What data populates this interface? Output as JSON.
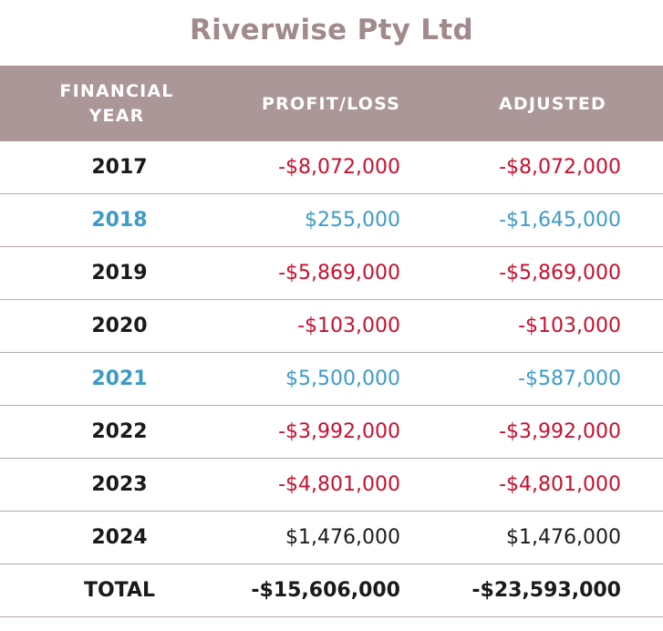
{
  "title": "Riverwise Pty Ltd",
  "colors": {
    "header_bg": "#ab9698",
    "title": "#a08a8c",
    "negative": "#c8102e",
    "highlight": "#3d9bc9",
    "default": "#1a1a1a"
  },
  "headers": {
    "year_line1": "FINANCIAL",
    "year_line2": "YEAR",
    "profit_loss": "PROFIT/LOSS",
    "adjusted": "ADJUSTED"
  },
  "rows": [
    {
      "year": "2017",
      "profit_loss": "-$8,072,000",
      "adjusted": "-$8,072,000",
      "style": "negative"
    },
    {
      "year": "2018",
      "profit_loss": "$255,000",
      "adjusted": "-$1,645,000",
      "style": "highlight"
    },
    {
      "year": "2019",
      "profit_loss": "-$5,869,000",
      "adjusted": "-$5,869,000",
      "style": "negative"
    },
    {
      "year": "2020",
      "profit_loss": "-$103,000",
      "adjusted": "-$103,000",
      "style": "negative"
    },
    {
      "year": "2021",
      "profit_loss": "$5,500,000",
      "adjusted": "-$587,000",
      "style": "highlight"
    },
    {
      "year": "2022",
      "profit_loss": "-$3,992,000",
      "adjusted": "-$3,992,000",
      "style": "negative"
    },
    {
      "year": "2023",
      "profit_loss": "-$4,801,000",
      "adjusted": "-$4,801,000",
      "style": "negative"
    },
    {
      "year": "2024",
      "profit_loss": "$1,476,000",
      "adjusted": "$1,476,000",
      "style": "default"
    }
  ],
  "total": {
    "label": "TOTAL",
    "profit_loss": "-$15,606,000",
    "adjusted": "-$23,593,000"
  },
  "chart_data": {
    "type": "table",
    "title": "Riverwise Pty Ltd",
    "columns": [
      "FINANCIAL YEAR",
      "PROFIT/LOSS",
      "ADJUSTED"
    ],
    "rows": [
      [
        "2017",
        -8072000,
        -8072000
      ],
      [
        "2018",
        255000,
        -1645000
      ],
      [
        "2019",
        -5869000,
        -5869000
      ],
      [
        "2020",
        -103000,
        -103000
      ],
      [
        "2021",
        5500000,
        -587000
      ],
      [
        "2022",
        -3992000,
        -3992000
      ],
      [
        "2023",
        -4801000,
        -4801000
      ],
      [
        "2024",
        1476000,
        1476000
      ]
    ],
    "total": [
      "TOTAL",
      -15606000,
      -23593000
    ],
    "highlighted_rows": [
      "2018",
      "2021"
    ]
  }
}
